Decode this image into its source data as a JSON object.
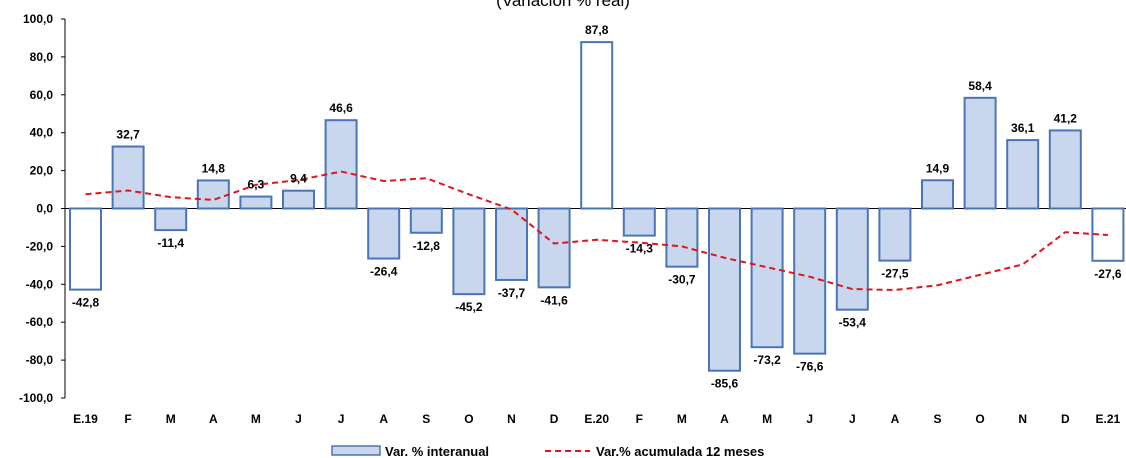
{
  "chart_data": {
    "type": "bar",
    "subtitle": "(Variación % real)",
    "categories": [
      "E.19",
      "F",
      "M",
      "A",
      "M",
      "J",
      "J",
      "A",
      "S",
      "O",
      "N",
      "D",
      "E.20",
      "F",
      "M",
      "A",
      "M",
      "J",
      "J",
      "A",
      "S",
      "O",
      "N",
      "D",
      "E.21"
    ],
    "ylim": [
      -100,
      100
    ],
    "yticks": [
      "100,0",
      "80,0",
      "60,0",
      "40,0",
      "20,0",
      "0,0",
      "-20,0",
      "-40,0",
      "-60,0",
      "-80,0",
      "-100,0"
    ],
    "ytick_values": [
      100,
      80,
      60,
      40,
      20,
      0,
      -20,
      -40,
      -60,
      -80,
      -100
    ],
    "grid": false,
    "legend_position": "bottom",
    "series": [
      {
        "name": "Var. % interanual",
        "type": "bar",
        "values": [
          -42.8,
          32.7,
          -11.4,
          14.8,
          6.3,
          9.4,
          46.6,
          -26.4,
          -12.8,
          -45.2,
          -37.7,
          -41.6,
          87.8,
          -14.3,
          -30.7,
          -85.6,
          -73.2,
          -76.6,
          -53.4,
          -27.5,
          14.9,
          58.4,
          36.1,
          41.2,
          -27.6
        ],
        "labels": [
          "-42,8",
          "32,7",
          "-11,4",
          "14,8",
          "6,3",
          "9,4",
          "46,6",
          "-26,4",
          "-12,8",
          "-45,2",
          "-37,7",
          "-41,6",
          "87,8",
          "-14,3",
          "-30,7",
          "-85,6",
          "-73,2",
          "-76,6",
          "-53,4",
          "-27,5",
          "14,9",
          "58,4",
          "36,1",
          "41,2",
          "-27,6"
        ],
        "highlighted_white": [
          0,
          12,
          24
        ],
        "fill_color": "#c9d7ee",
        "stroke_color": "#4a74b4"
      },
      {
        "name": "Var.% acumulada 12 meses",
        "type": "line",
        "style": "dashed",
        "color": "#e0161b",
        "values": [
          7.5,
          9.5,
          6.0,
          4.5,
          12.5,
          15.0,
          19.5,
          14.5,
          16.0,
          7.5,
          -0.5,
          -18.5,
          -16.5,
          -18.0,
          -20.0,
          -26.0,
          -31.0,
          -36.0,
          -42.5,
          -43.0,
          -40.5,
          -35.0,
          -29.5,
          -12.5,
          -14.0
        ]
      }
    ]
  }
}
